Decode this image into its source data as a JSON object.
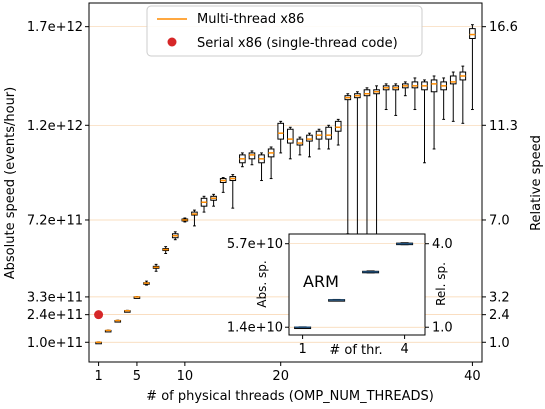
{
  "chart_data": [
    {
      "type": "box",
      "xlabel": "# of physical threads (OMP_NUM_THREADS)",
      "ylabel": "Absolute speed (events/hour)",
      "ylabel_right": "Relative speed",
      "xlim": [
        0,
        41
      ],
      "ylim": [
        0,
        1820000000000.0
      ],
      "x_ticks": [
        1,
        5,
        10,
        20,
        40
      ],
      "y_ticks": [
        {
          "value": 100000000000.0,
          "label": "1.0e+11"
        },
        {
          "value": 240000000000.0,
          "label": "2.4e+11"
        },
        {
          "value": 330000000000.0,
          "label": "3.3e+11"
        },
        {
          "value": 720000000000.0,
          "label": "7.2e+11"
        },
        {
          "value": 1200000000000.0,
          "label": "1.2e+12"
        },
        {
          "value": 1700000000000.0,
          "label": "1.7e+12"
        }
      ],
      "y_ticks_right": [
        {
          "value": 100000000000.0,
          "label": "1.0"
        },
        {
          "value": 240000000000.0,
          "label": "2.4"
        },
        {
          "value": 330000000000.0,
          "label": "3.2"
        },
        {
          "value": 720000000000.0,
          "label": "7.0"
        },
        {
          "value": 1200000000000.0,
          "label": "11.3"
        },
        {
          "value": 1700000000000.0,
          "label": "16.6"
        }
      ],
      "legend": {
        "placement": "top-center",
        "entries": [
          {
            "label": "Multi-thread x86",
            "marker": "line",
            "color": "#ff8c00"
          },
          {
            "label": "Serial x86 (single-thread code)",
            "marker": "dot",
            "color": "#d62728"
          }
        ]
      },
      "series": [
        {
          "name": "Multi-thread x86",
          "color": "#ff8c00",
          "x": [
            1,
            2,
            3,
            4,
            5,
            6,
            7,
            8,
            9,
            10,
            11,
            12,
            13,
            14,
            15,
            16,
            17,
            18,
            19,
            20,
            21,
            22,
            23,
            24,
            25,
            26,
            27,
            28,
            29,
            30,
            31,
            32,
            33,
            34,
            35,
            36,
            37,
            38,
            39,
            40
          ],
          "median": [
            100000000000.0,
            160000000000.0,
            210000000000.0,
            260000000000.0,
            330000000000.0,
            400000000000.0,
            480000000000.0,
            570000000000.0,
            640000000000.0,
            720000000000.0,
            750000000000.0,
            810000000000.0,
            830000000000.0,
            920000000000.0,
            930000000000.0,
            1030000000000.0,
            1050000000000.0,
            1030000000000.0,
            1060000000000.0,
            1160000000000.0,
            1130000000000.0,
            1110000000000.0,
            1130000000000.0,
            1150000000000.0,
            1150000000000.0,
            1190000000000.0,
            1340000000000.0,
            1350000000000.0,
            1360000000000.0,
            1370000000000.0,
            1390000000000.0,
            1390000000000.0,
            1400000000000.0,
            1400000000000.0,
            1400000000000.0,
            1410000000000.0,
            1400000000000.0,
            1420000000000.0,
            1450000000000.0,
            1660000000000.0
          ],
          "q1": [
            100000000000.0,
            160000000000.0,
            210000000000.0,
            260000000000.0,
            330000000000.0,
            398000000000.0,
            475000000000.0,
            565000000000.0,
            630000000000.0,
            715000000000.0,
            745000000000.0,
            790000000000.0,
            820000000000.0,
            910000000000.0,
            920000000000.0,
            1010000000000.0,
            1030000000000.0,
            1010000000000.0,
            1040000000000.0,
            1130000000000.0,
            1110000000000.0,
            1100000000000.0,
            1120000000000.0,
            1130000000000.0,
            1130000000000.0,
            1170000000000.0,
            1330000000000.0,
            1340000000000.0,
            1350000000000.0,
            1360000000000.0,
            1380000000000.0,
            1380000000000.0,
            1390000000000.0,
            1390000000000.0,
            1380000000000.0,
            1370000000000.0,
            1380000000000.0,
            1410000000000.0,
            1430000000000.0,
            1640000000000.0
          ],
          "q3": [
            100000000000.0,
            160000000000.0,
            210000000000.0,
            260000000000.0,
            330000000000.0,
            402000000000.0,
            485000000000.0,
            575000000000.0,
            650000000000.0,
            725000000000.0,
            760000000000.0,
            830000000000.0,
            840000000000.0,
            930000000000.0,
            940000000000.0,
            1050000000000.0,
            1060000000000.0,
            1050000000000.0,
            1080000000000.0,
            1210000000000.0,
            1180000000000.0,
            1130000000000.0,
            1150000000000.0,
            1170000000000.0,
            1190000000000.0,
            1220000000000.0,
            1350000000000.0,
            1360000000000.0,
            1380000000000.0,
            1380000000000.0,
            1400000000000.0,
            1400000000000.0,
            1410000000000.0,
            1420000000000.0,
            1420000000000.0,
            1430000000000.0,
            1420000000000.0,
            1450000000000.0,
            1470000000000.0,
            1690000000000.0
          ],
          "whisker_low": [
            98000000000.0,
            158000000000.0,
            208000000000.0,
            258000000000.0,
            328000000000.0,
            390000000000.0,
            460000000000.0,
            550000000000.0,
            620000000000.0,
            710000000000.0,
            690000000000.0,
            760000000000.0,
            790000000000.0,
            860000000000.0,
            780000000000.0,
            990000000000.0,
            1000000000000.0,
            920000000000.0,
            930000000000.0,
            1060000000000.0,
            1030000000000.0,
            1050000000000.0,
            1040000000000.0,
            1080000000000.0,
            1080000000000.0,
            1100000000000.0,
            650000000000.0,
            550000000000.0,
            450000000000.0,
            350000000000.0,
            1280000000000.0,
            1250000000000.0,
            1350000000000.0,
            1280000000000.0,
            1010000000000.0,
            1080000000000.0,
            1230000000000.0,
            1220000000000.0,
            1210000000000.0,
            1280000000000.0
          ],
          "whisker_high": [
            102000000000.0,
            162000000000.0,
            212000000000.0,
            262000000000.0,
            332000000000.0,
            410000000000.0,
            495000000000.0,
            585000000000.0,
            660000000000.0,
            730000000000.0,
            770000000000.0,
            840000000000.0,
            850000000000.0,
            935000000000.0,
            950000000000.0,
            1060000000000.0,
            1070000000000.0,
            1060000000000.0,
            1090000000000.0,
            1220000000000.0,
            1190000000000.0,
            1140000000000.0,
            1160000000000.0,
            1180000000000.0,
            1200000000000.0,
            1230000000000.0,
            1360000000000.0,
            1370000000000.0,
            1390000000000.0,
            1400000000000.0,
            1410000000000.0,
            1410000000000.0,
            1420000000000.0,
            1440000000000.0,
            1430000000000.0,
            1450000000000.0,
            1440000000000.0,
            1470000000000.0,
            1500000000000.0,
            1710000000000.0
          ]
        },
        {
          "name": "Serial x86 (single-thread code)",
          "color": "#d62728",
          "x": [
            1
          ],
          "values": [
            240000000000.0
          ]
        }
      ]
    },
    {
      "type": "box",
      "title": "ARM",
      "xlabel": "# of thr.",
      "ylabel": "Abs. sp.",
      "ylabel_right": "Rel. sp.",
      "xlim": [
        0.6,
        4.6
      ],
      "ylim": [
        10000000000.0,
        62000000000.0
      ],
      "x_ticks": [
        1,
        4
      ],
      "y_ticks": [
        {
          "value": 14000000000.0,
          "label": "1.4e+10"
        },
        {
          "value": 57000000000.0,
          "label": "5.7e+10"
        }
      ],
      "y_ticks_right": [
        {
          "value": 14000000000.0,
          "label": "1.0"
        },
        {
          "value": 57000000000.0,
          "label": "4.0"
        }
      ],
      "series": [
        {
          "name": "",
          "color": "#1f4e79",
          "x": [
            1,
            2,
            3,
            4
          ],
          "median": [
            14000000000.0,
            28000000000.0,
            42500000000.0,
            57000000000.0
          ],
          "q1": [
            13900000000.0,
            27800000000.0,
            42200000000.0,
            56700000000.0
          ],
          "q3": [
            14100000000.0,
            28200000000.0,
            42800000000.0,
            57300000000.0
          ],
          "whisker_low": [
            13800000000.0,
            27700000000.0,
            42000000000.0,
            56500000000.0
          ],
          "whisker_high": [
            14200000000.0,
            28300000000.0,
            43000000000.0,
            57500000000.0
          ]
        }
      ]
    }
  ]
}
